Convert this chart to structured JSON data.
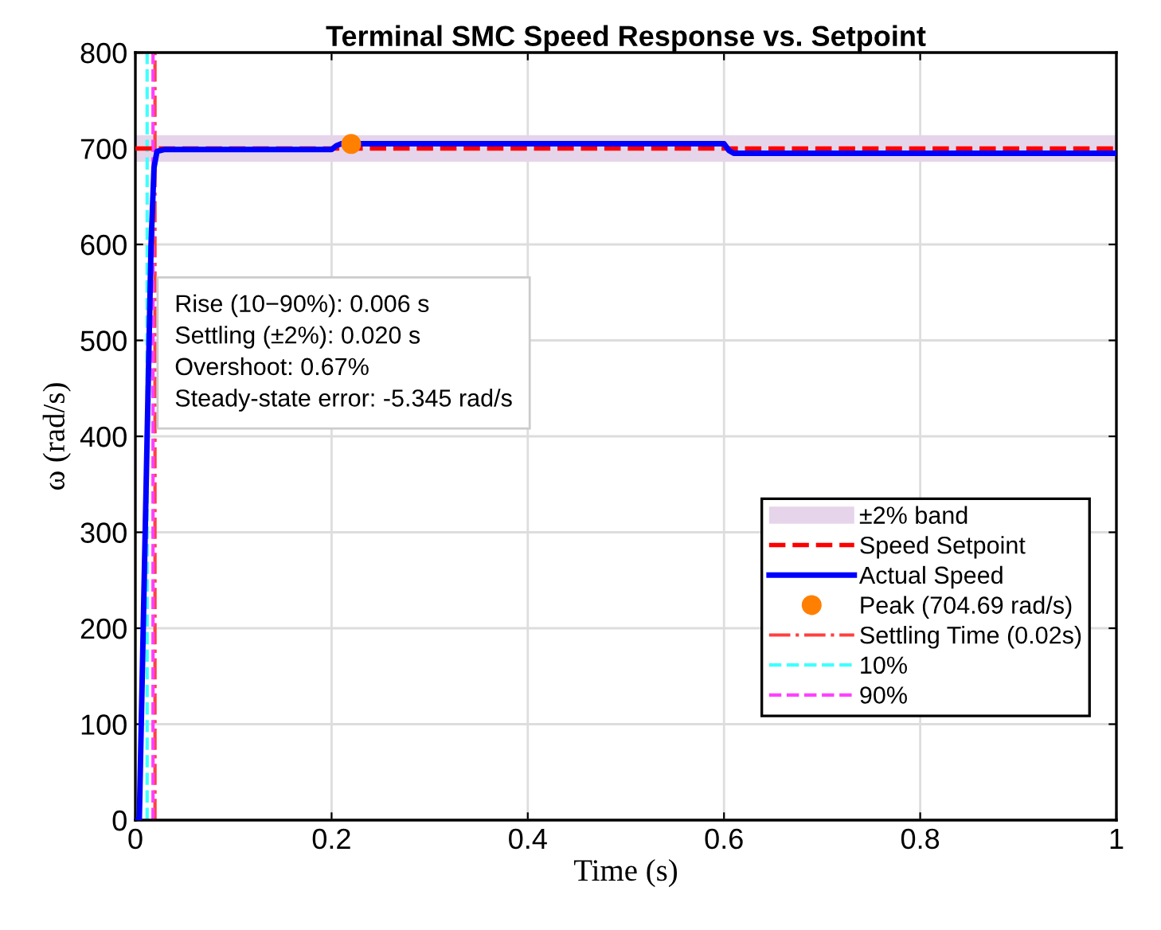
{
  "chart_data": {
    "type": "line",
    "title": "Terminal SMC Speed Response vs. Setpoint",
    "xlabel": "Time (s)",
    "ylabel": "ω (rad/s)",
    "xlim": [
      0,
      1
    ],
    "xticks": [
      0,
      0.2,
      0.4,
      0.6,
      0.8,
      1
    ],
    "ylim": [
      0,
      800
    ],
    "yticks": [
      0,
      100,
      200,
      300,
      400,
      500,
      600,
      700,
      800
    ],
    "grid": true,
    "legend": "bottom right",
    "series": [
      {
        "name": "Speed Setpoint",
        "color": "#ff0000",
        "line_style": "dashed",
        "x": [
          0,
          1
        ],
        "values": [
          700,
          700
        ]
      },
      {
        "name": "Actual Speed",
        "color": "#0000ff",
        "line_style": "solid",
        "x": [
          0,
          0.004,
          0.01,
          0.016,
          0.019,
          0.022,
          0.03,
          0.2,
          0.205,
          0.21,
          0.6,
          0.605,
          0.61,
          1
        ],
        "values": [
          0,
          0,
          300,
          600,
          680,
          697,
          699,
          699,
          703,
          705,
          705,
          698,
          695,
          695
        ]
      },
      {
        "name": "Peak (704.69 rad/s)",
        "type": "scatter",
        "color": "#ff8000",
        "marker": "circle",
        "x": [
          0.22
        ],
        "values": [
          704.69
        ]
      },
      {
        "name": "Settling Time (0.02s)",
        "color": "#ff4040",
        "line_style": "dashdot",
        "x": [
          0.02,
          0.02
        ],
        "values": [
          0,
          800
        ]
      },
      {
        "name": "10%",
        "color": "#40ffff",
        "line_style": "dashed",
        "x": [
          0.012,
          0.012
        ],
        "values": [
          0,
          800
        ]
      },
      {
        "name": "90%",
        "color": "#ff40ff",
        "line_style": "dashed",
        "x": [
          0.018,
          0.018
        ],
        "values": [
          0,
          800
        ]
      }
    ],
    "bands": [
      {
        "axis": "y",
        "from": 686,
        "to": 714,
        "label": "±2% band",
        "color": "#e6d5ea"
      }
    ],
    "annotations": [
      "Rise (10−90%): 0.006 s",
      "Settling (±2%): 0.020 s",
      "Overshoot: 0.67%",
      "Steady-state error: -5.345 rad/s"
    ]
  }
}
